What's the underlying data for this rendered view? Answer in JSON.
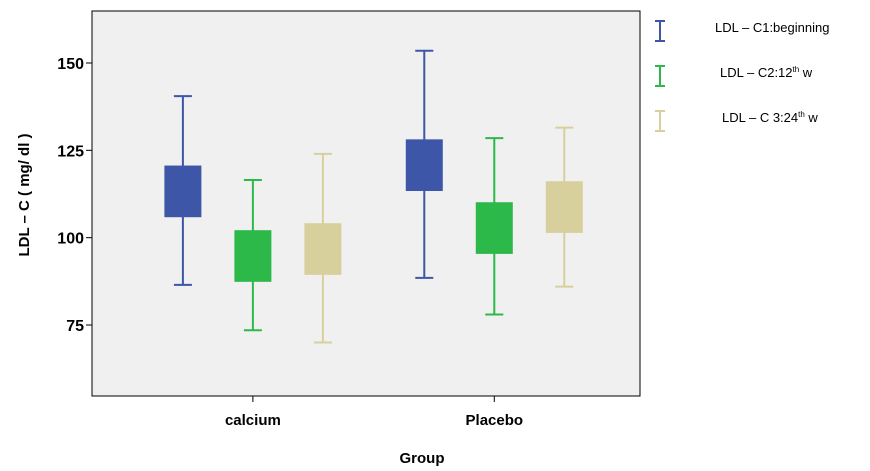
{
  "chart_data": {
    "type": "boxplot",
    "xlabel": "Group",
    "ylabel": "LDL – C (  mg/ dl )",
    "categories": [
      "calcium",
      "Placebo"
    ],
    "y_ticks": [
      75,
      100,
      125,
      150
    ],
    "ylim": [
      57,
      165
    ],
    "grid": false,
    "legend_position": "right",
    "series": [
      {
        "name": "LDL – C1:beginning",
        "legend": {
          "pre": "LDL – C1:beginning",
          "sup": "",
          "post": ""
        },
        "color": "#3d56a8",
        "boxes": [
          {
            "min": 86.5,
            "q1": 106,
            "q3": 120.5,
            "max": 140.5
          },
          {
            "min": 88.5,
            "q1": 113.5,
            "q3": 128,
            "max": 153.5
          }
        ]
      },
      {
        "name": "LDL – C2:12th w",
        "legend": {
          "pre": "LDL – C2:12",
          "sup": "th",
          "post": " w"
        },
        "color": "#2db84a",
        "boxes": [
          {
            "min": 73.5,
            "q1": 87.5,
            "q3": 102,
            "max": 116.5
          },
          {
            "min": 78,
            "q1": 95.5,
            "q3": 110,
            "max": 128.5
          }
        ]
      },
      {
        "name": "LDL – C 3:24th w",
        "legend": {
          "pre": "LDL – C 3:24",
          "sup": "th",
          "post": " w"
        },
        "color": "#d8d09c",
        "boxes": [
          {
            "min": 70,
            "q1": 89.5,
            "q3": 104,
            "max": 124
          },
          {
            "min": 86,
            "q1": 101.5,
            "q3": 116,
            "max": 131.5
          }
        ]
      }
    ]
  }
}
